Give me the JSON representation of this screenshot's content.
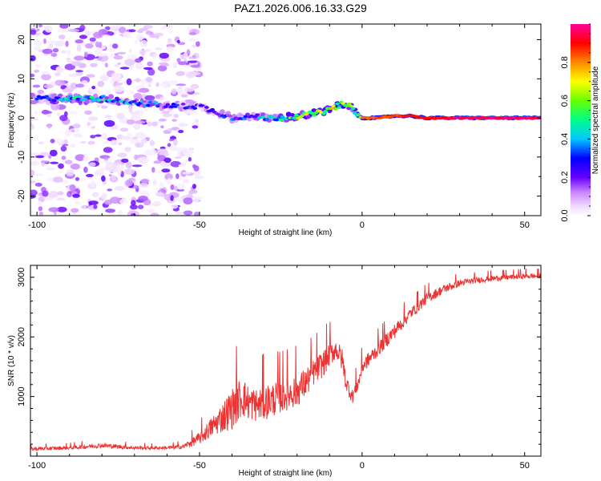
{
  "figure": {
    "title": "PAZ1.2026.006.16.33.G29"
  },
  "chart_data": [
    {
      "type": "heatmap",
      "title": "PAZ1.2026.006.16.33.G29",
      "xlabel": "Height of straight line (km)",
      "ylabel": "Frequency (Hz)",
      "xlim": [
        -102,
        55
      ],
      "ylim": [
        -25,
        24
      ],
      "xticks": [
        -100,
        -50,
        0,
        50
      ],
      "yticks": [
        -20,
        -10,
        0,
        10,
        20
      ],
      "xtick_labels": [
        "-100",
        "-50",
        "0",
        "50"
      ],
      "ytick_labels": [
        "-20",
        "-10",
        "0",
        "10",
        "20"
      ],
      "colorbar": {
        "label": "Normalized spectral amplitude",
        "range": [
          0,
          1
        ],
        "ticks": [
          0.0,
          0.2,
          0.4,
          0.6,
          0.8
        ],
        "tick_labels": [
          "0.0",
          "0.2",
          "0.4",
          "0.6",
          "0.8"
        ]
      },
      "ridge": {
        "x": [
          -100,
          -90,
          -80,
          -70,
          -60,
          -50,
          -45,
          -40,
          -35,
          -30,
          -25,
          -20,
          -15,
          -10,
          -8,
          -6,
          -4,
          -2,
          0,
          5,
          10,
          15,
          20,
          30,
          40,
          55
        ],
        "freq": [
          5,
          5,
          5,
          4,
          3,
          3,
          1.5,
          0,
          0.5,
          0,
          0,
          0.5,
          1,
          2,
          3,
          3.5,
          3,
          1.5,
          0,
          0,
          0.5,
          0.5,
          0,
          0,
          0,
          0
        ],
        "amplitude": [
          0.25,
          0.35,
          0.4,
          0.3,
          0.25,
          0.2,
          0.2,
          0.25,
          0.3,
          0.35,
          0.45,
          0.55,
          0.6,
          0.65,
          0.6,
          0.6,
          0.55,
          0.5,
          0.8,
          0.85,
          0.85,
          0.9,
          0.9,
          0.95,
          0.97,
          0.97
        ]
      },
      "noise_region": {
        "x_range": [
          -100,
          -50
        ],
        "freq_range": [
          -25,
          24
        ],
        "amplitude_range": [
          0.0,
          0.2
        ]
      }
    },
    {
      "type": "line",
      "title": "",
      "xlabel": "Height of straight line (km)",
      "ylabel": "SNR (10 * v/v)",
      "xlim": [
        -102,
        55
      ],
      "ylim": [
        0,
        3200
      ],
      "xticks": [
        -100,
        -50,
        0,
        50
      ],
      "yticks": [
        1000,
        2000,
        3000
      ],
      "xtick_labels": [
        "-100",
        "-50",
        "0",
        "50"
      ],
      "ytick_labels": [
        "1000",
        "2000",
        "3000"
      ],
      "series": [
        {
          "name": "SNR",
          "color": "#ee3333",
          "envelope_x": [
            -102,
            -90,
            -80,
            -70,
            -60,
            -55,
            -50,
            -45,
            -40,
            -37,
            -35,
            -32,
            -30,
            -25,
            -20,
            -17,
            -15,
            -12,
            -10,
            -8,
            -6,
            -5,
            -3,
            -1,
            0,
            5,
            10,
            15,
            20,
            25,
            30,
            35,
            40,
            45,
            50,
            55
          ],
          "envelope_y": [
            120,
            140,
            180,
            140,
            140,
            160,
            300,
            550,
            800,
            1000,
            900,
            850,
            900,
            1000,
            1100,
            1250,
            1400,
            1550,
            1700,
            1800,
            1600,
            1250,
            1000,
            1250,
            1500,
            1800,
            2100,
            2400,
            2650,
            2800,
            2900,
            2950,
            2980,
            3000,
            3020,
            3020
          ],
          "variation_y": [
            60,
            60,
            80,
            60,
            50,
            80,
            200,
            400,
            700,
            700,
            600,
            550,
            600,
            550,
            550,
            500,
            450,
            450,
            400,
            350,
            400,
            300,
            250,
            250,
            250,
            250,
            250,
            200,
            180,
            150,
            120,
            100,
            100,
            90,
            90,
            90
          ]
        }
      ]
    }
  ]
}
